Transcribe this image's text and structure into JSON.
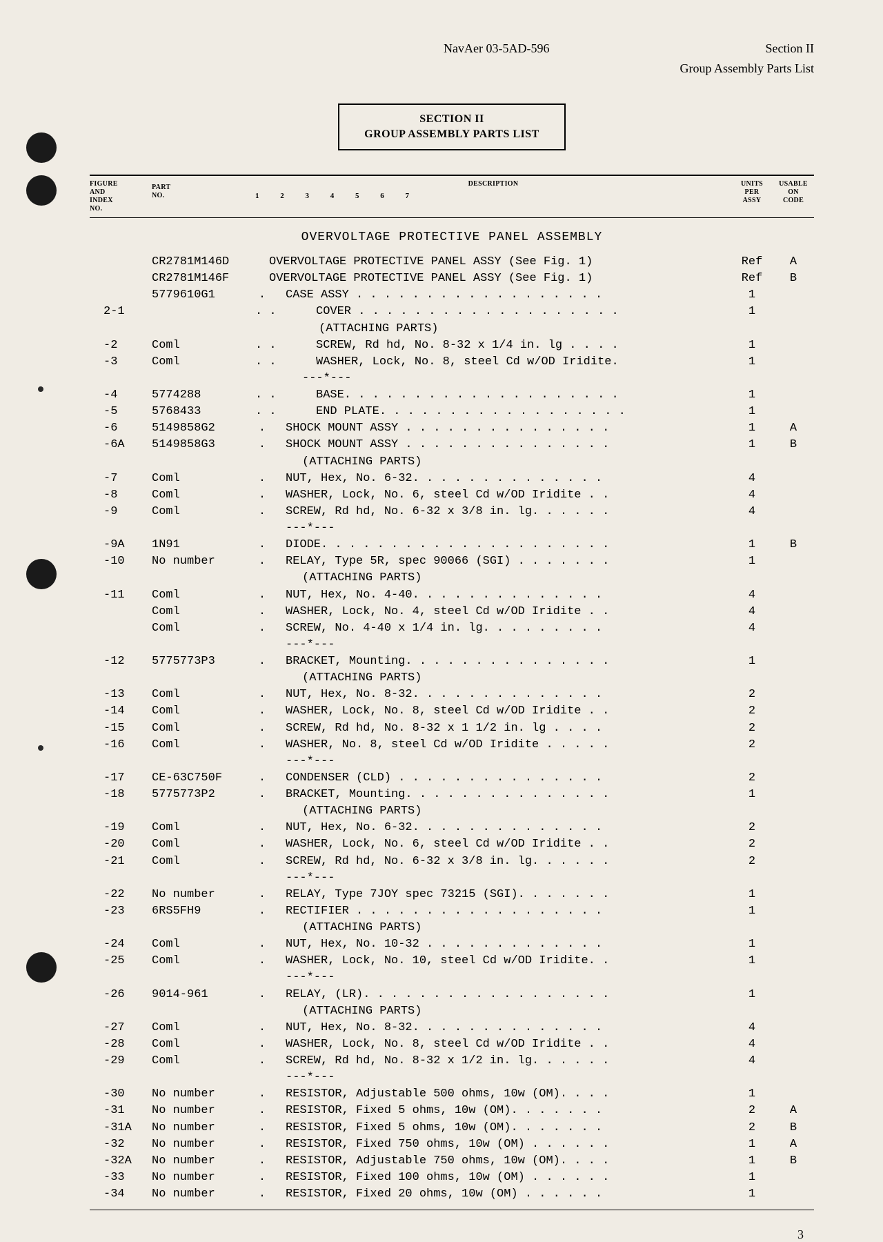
{
  "header": {
    "doc_number": "NavAer 03-5AD-596",
    "section": "Section II",
    "subtitle": "Group Assembly Parts List"
  },
  "section_box": {
    "line1": "SECTION II",
    "line2": "GROUP ASSEMBLY PARTS LIST"
  },
  "columns": {
    "figure": "FIGURE\nAND\nINDEX\nNO.",
    "part": "PART\nNO.",
    "description": "DESCRIPTION",
    "desc_nums": "1  2  3  4  5  6  7",
    "units": "UNITS\nPER\nASSY",
    "usable": "USABLE\nON\nCODE"
  },
  "assembly_title": "OVERVOLTAGE PROTECTIVE PANEL ASSEMBLY",
  "rows": [
    {
      "figure": "",
      "part": "CR2781M146D",
      "dot": "",
      "indent": 0,
      "desc": "OVERVOLTAGE PROTECTIVE PANEL ASSY (See Fig. 1)",
      "dots": false,
      "units": "Ref",
      "usable": "A"
    },
    {
      "figure": "",
      "part": "CR2781M146F",
      "dot": "",
      "indent": 0,
      "desc": "OVERVOLTAGE PROTECTIVE PANEL ASSY (See Fig. 1)",
      "dots": false,
      "units": "Ref",
      "usable": "B"
    },
    {
      "figure": "",
      "part": "5779610G1",
      "dot": ".",
      "indent": 1,
      "desc": "CASE ASSY",
      "dots": true,
      "units": "1",
      "usable": ""
    },
    {
      "figure": "2-1",
      "part": "",
      "dot": ".",
      "indent": 2,
      "desc": "COVER",
      "dots": true,
      "units": "1",
      "usable": ""
    },
    {
      "figure": "",
      "part": "",
      "dot": "",
      "indent": 0,
      "desc": "",
      "attaching": true,
      "units": "",
      "usable": ""
    },
    {
      "figure": "-2",
      "part": "Coml",
      "dot": ".",
      "indent": 2,
      "desc": "SCREW, Rd hd, No. 8-32 x 1/4 in. lg",
      "dots": true,
      "units": "1",
      "usable": ""
    },
    {
      "figure": "-3",
      "part": "Coml",
      "dot": ".",
      "indent": 2,
      "desc": "WASHER, Lock, No. 8, steel Cd w/OD Iridite.",
      "dots": true,
      "units": "1",
      "usable": ""
    },
    {
      "figure": "",
      "part": "",
      "dot": "",
      "indent": 0,
      "desc": "",
      "sep": true,
      "units": "",
      "usable": ""
    },
    {
      "figure": "-4",
      "part": "5774288",
      "dot": ".",
      "indent": 2,
      "desc": "BASE.",
      "dots": true,
      "units": "1",
      "usable": ""
    },
    {
      "figure": "-5",
      "part": "5768433",
      "dot": ".",
      "indent": 2,
      "desc": "END PLATE.",
      "dots": true,
      "units": "1",
      "usable": ""
    },
    {
      "figure": "-6",
      "part": "5149858G2",
      "dot": ".",
      "indent": 1,
      "desc": "SHOCK MOUNT ASSY",
      "dots": true,
      "units": "1",
      "usable": "A"
    },
    {
      "figure": "-6A",
      "part": "5149858G3",
      "dot": ".",
      "indent": 1,
      "desc": "SHOCK MOUNT ASSY",
      "dots": true,
      "units": "1",
      "usable": "B"
    },
    {
      "figure": "",
      "part": "",
      "dot": "",
      "indent": 0,
      "desc": "",
      "attaching": true,
      "attaching_indent": 1,
      "units": "",
      "usable": ""
    },
    {
      "figure": "-7",
      "part": "Coml",
      "dot": ".",
      "indent": 1,
      "desc": "NUT, Hex, No. 6-32.",
      "dots": true,
      "units": "4",
      "usable": ""
    },
    {
      "figure": "-8",
      "part": "Coml",
      "dot": ".",
      "indent": 1,
      "desc": "WASHER, Lock, No. 6, steel Cd w/OD Iridite",
      "dots": true,
      "units": "4",
      "usable": ""
    },
    {
      "figure": "-9",
      "part": "Coml",
      "dot": ".",
      "indent": 1,
      "desc": "SCREW, Rd hd, No. 6-32 x 3/8 in. lg.",
      "dots": true,
      "units": "4",
      "usable": ""
    },
    {
      "figure": "",
      "part": "",
      "dot": "",
      "indent": 0,
      "desc": "",
      "sep": true,
      "sep_indent": 1,
      "units": "",
      "usable": ""
    },
    {
      "figure": "-9A",
      "part": "1N91",
      "dot": ".",
      "indent": 1,
      "desc": "DIODE.",
      "dots": true,
      "units": "1",
      "usable": "B"
    },
    {
      "figure": "-10",
      "part": "No number",
      "dot": ".",
      "indent": 1,
      "desc": "RELAY, Type 5R, spec 90066 (SGI)",
      "dots": true,
      "units": "1",
      "usable": ""
    },
    {
      "figure": "",
      "part": "",
      "dot": "",
      "indent": 0,
      "desc": "",
      "attaching": true,
      "attaching_indent": 1,
      "units": "",
      "usable": ""
    },
    {
      "figure": "-11",
      "part": "Coml",
      "dot": ".",
      "indent": 1,
      "desc": "NUT, Hex, No. 4-40.",
      "dots": true,
      "units": "4",
      "usable": ""
    },
    {
      "figure": "",
      "part": "Coml",
      "dot": ".",
      "indent": 1,
      "desc": "WASHER, Lock, No. 4, steel Cd w/OD Iridite",
      "dots": true,
      "units": "4",
      "usable": ""
    },
    {
      "figure": "",
      "part": "Coml",
      "dot": ".",
      "indent": 1,
      "desc": "SCREW, No. 4-40 x 1/4 in. lg.",
      "dots": true,
      "units": "4",
      "usable": ""
    },
    {
      "figure": "",
      "part": "",
      "dot": "",
      "indent": 0,
      "desc": "",
      "sep": true,
      "sep_indent": 1,
      "units": "",
      "usable": ""
    },
    {
      "figure": "-12",
      "part": "5775773P3",
      "dot": ".",
      "indent": 1,
      "desc": "BRACKET, Mounting.",
      "dots": true,
      "units": "1",
      "usable": ""
    },
    {
      "figure": "",
      "part": "",
      "dot": "",
      "indent": 0,
      "desc": "",
      "attaching": true,
      "attaching_indent": 1,
      "units": "",
      "usable": ""
    },
    {
      "figure": "-13",
      "part": "Coml",
      "dot": ".",
      "indent": 1,
      "desc": "NUT, Hex, No. 8-32.",
      "dots": true,
      "units": "2",
      "usable": ""
    },
    {
      "figure": "-14",
      "part": "Coml",
      "dot": ".",
      "indent": 1,
      "desc": "WASHER, Lock, No. 8, steel Cd w/OD Iridite",
      "dots": true,
      "units": "2",
      "usable": ""
    },
    {
      "figure": "-15",
      "part": "Coml",
      "dot": ".",
      "indent": 1,
      "desc": "SCREW, Rd hd, No. 8-32 x 1 1/2 in. lg",
      "dots": true,
      "units": "2",
      "usable": ""
    },
    {
      "figure": "-16",
      "part": "Coml",
      "dot": ".",
      "indent": 1,
      "desc": "WASHER, No. 8, steel Cd w/OD Iridite",
      "dots": true,
      "units": "2",
      "usable": ""
    },
    {
      "figure": "",
      "part": "",
      "dot": "",
      "indent": 0,
      "desc": "",
      "sep": true,
      "sep_indent": 1,
      "units": "",
      "usable": ""
    },
    {
      "figure": "-17",
      "part": "CE-63C750F",
      "dot": ".",
      "indent": 1,
      "desc": "CONDENSER (CLD)",
      "dots": true,
      "units": "2",
      "usable": ""
    },
    {
      "figure": "-18",
      "part": "5775773P2",
      "dot": ".",
      "indent": 1,
      "desc": "BRACKET, Mounting.",
      "dots": true,
      "units": "1",
      "usable": ""
    },
    {
      "figure": "",
      "part": "",
      "dot": "",
      "indent": 0,
      "desc": "",
      "attaching": true,
      "attaching_indent": 1,
      "units": "",
      "usable": ""
    },
    {
      "figure": "-19",
      "part": "Coml",
      "dot": ".",
      "indent": 1,
      "desc": "NUT, Hex, No. 6-32.",
      "dots": true,
      "units": "2",
      "usable": ""
    },
    {
      "figure": "-20",
      "part": "Coml",
      "dot": ".",
      "indent": 1,
      "desc": "WASHER, Lock, No. 6, steel Cd w/OD Iridite",
      "dots": true,
      "units": "2",
      "usable": ""
    },
    {
      "figure": "-21",
      "part": "Coml",
      "dot": ".",
      "indent": 1,
      "desc": "SCREW, Rd hd, No. 6-32 x 3/8 in. lg.",
      "dots": true,
      "units": "2",
      "usable": ""
    },
    {
      "figure": "",
      "part": "",
      "dot": "",
      "indent": 0,
      "desc": "",
      "sep": true,
      "sep_indent": 1,
      "units": "",
      "usable": ""
    },
    {
      "figure": "-22",
      "part": "No number",
      "dot": ".",
      "indent": 1,
      "desc": "RELAY, Type 7JOY spec 73215 (SGI).",
      "dots": true,
      "units": "1",
      "usable": ""
    },
    {
      "figure": "-23",
      "part": "6RS5FH9",
      "dot": ".",
      "indent": 1,
      "desc": "RECTIFIER",
      "dots": true,
      "units": "1",
      "usable": ""
    },
    {
      "figure": "",
      "part": "",
      "dot": "",
      "indent": 0,
      "desc": "",
      "attaching": true,
      "attaching_indent": 1,
      "units": "",
      "usable": ""
    },
    {
      "figure": "-24",
      "part": "Coml",
      "dot": ".",
      "indent": 1,
      "desc": "NUT, Hex, No. 10-32",
      "dots": true,
      "units": "1",
      "usable": ""
    },
    {
      "figure": "-25",
      "part": "Coml",
      "dot": ".",
      "indent": 1,
      "desc": "WASHER, Lock, No. 10, steel Cd w/OD Iridite.",
      "dots": true,
      "units": "1",
      "usable": ""
    },
    {
      "figure": "",
      "part": "",
      "dot": "",
      "indent": 0,
      "desc": "",
      "sep": true,
      "sep_indent": 1,
      "units": "",
      "usable": ""
    },
    {
      "figure": "-26",
      "part": "9014-961",
      "dot": ".",
      "indent": 1,
      "desc": "RELAY, (LR).",
      "dots": true,
      "units": "1",
      "usable": ""
    },
    {
      "figure": "",
      "part": "",
      "dot": "",
      "indent": 0,
      "desc": "",
      "attaching": true,
      "attaching_indent": 1,
      "units": "",
      "usable": ""
    },
    {
      "figure": "-27",
      "part": "Coml",
      "dot": ".",
      "indent": 1,
      "desc": "NUT, Hex, No. 8-32.",
      "dots": true,
      "units": "4",
      "usable": ""
    },
    {
      "figure": "-28",
      "part": "Coml",
      "dot": ".",
      "indent": 1,
      "desc": "WASHER, Lock, No. 8, steel Cd w/OD Iridite",
      "dots": true,
      "units": "4",
      "usable": ""
    },
    {
      "figure": "-29",
      "part": "Coml",
      "dot": ".",
      "indent": 1,
      "desc": "SCREW, Rd hd, No. 8-32 x 1/2 in. lg.",
      "dots": true,
      "units": "4",
      "usable": ""
    },
    {
      "figure": "",
      "part": "",
      "dot": "",
      "indent": 0,
      "desc": "",
      "sep": true,
      "sep_indent": 1,
      "units": "",
      "usable": ""
    },
    {
      "figure": "-30",
      "part": "No number",
      "dot": ".",
      "indent": 1,
      "desc": "RESISTOR, Adjustable 500 ohms, 10w (OM).",
      "dots": true,
      "units": "1",
      "usable": ""
    },
    {
      "figure": "-31",
      "part": "No number",
      "dot": ".",
      "indent": 1,
      "desc": "RESISTOR, Fixed 5 ohms, 10w (OM).",
      "dots": true,
      "units": "2",
      "usable": "A"
    },
    {
      "figure": "-31A",
      "part": "No number",
      "dot": ".",
      "indent": 1,
      "desc": "RESISTOR, Fixed 5 ohms, 10w (OM).",
      "dots": true,
      "units": "2",
      "usable": "B"
    },
    {
      "figure": "-32",
      "part": "No number",
      "dot": ".",
      "indent": 1,
      "desc": "RESISTOR, Fixed 750 ohms, 10w (OM)",
      "dots": true,
      "units": "1",
      "usable": "A"
    },
    {
      "figure": "-32A",
      "part": "No number",
      "dot": ".",
      "indent": 1,
      "desc": "RESISTOR, Adjustable 750 ohms, 10w (OM).",
      "dots": true,
      "units": "1",
      "usable": "B"
    },
    {
      "figure": "-33",
      "part": "No number",
      "dot": ".",
      "indent": 1,
      "desc": "RESISTOR, Fixed 100 ohms, 10w (OM)",
      "dots": true,
      "units": "1",
      "usable": ""
    },
    {
      "figure": "-34",
      "part": "No number",
      "dot": ".",
      "indent": 1,
      "desc": "RESISTOR, Fixed 20 ohms, 10w (OM)",
      "dots": true,
      "units": "1",
      "usable": ""
    }
  ],
  "attaching_text": "(ATTACHING PARTS)",
  "sep_text": "---*---",
  "page_number": "3"
}
